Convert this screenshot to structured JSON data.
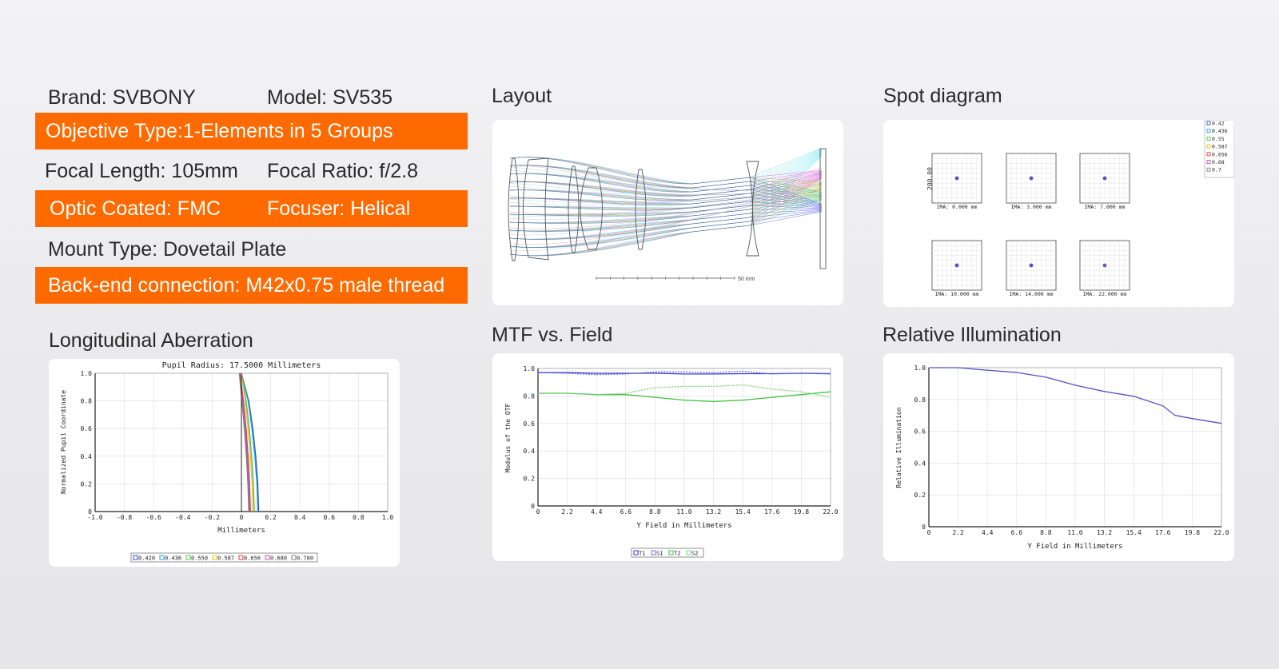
{
  "specs": {
    "brand": "Brand: SVBONY",
    "model": "Model: SV535",
    "objective_type": "Objective Type:1-Elements in 5 Groups",
    "focal_length": "Focal Length: 105mm",
    "focal_ratio": "Focal Ratio: f/2.8",
    "optic_coated": "Optic Coated: FMC",
    "focuser": "Focuser: Helical",
    "mount_type": "Mount Type: Dovetail Plate",
    "back_end": "Back-end connection: M42x0.75 male thread"
  },
  "colors": {
    "accent": "#ff6a00"
  },
  "sections": {
    "layout": "Layout",
    "spot": "Spot diagram",
    "longitudinal": "Longitudinal Aberration",
    "mtf": "MTF vs. Field",
    "illumination": "Relative Illumination"
  },
  "layout_scale": "50 mm",
  "spot_diagram": {
    "ylabel": "200.00",
    "legend": [
      "0.42",
      "0.436",
      "0.55",
      "0.587",
      "0.656",
      "0.68",
      "0.7"
    ],
    "fields": [
      "IMA: 0.000 mm",
      "IMA: 3.000 mm",
      "IMA: 7.000 mm",
      "IMA: 10.000 mm",
      "IMA: 14.000 mm",
      "IMA: 22.000 mm"
    ]
  },
  "chart_data": [
    {
      "id": "longitudinal",
      "type": "line",
      "title": "Pupil Radius: 17.5000 Millimeters",
      "xlabel": "Millimeters",
      "ylabel": "Normalized Pupil Coordinate",
      "xlim": [
        -1.0,
        1.0
      ],
      "ylim": [
        0,
        1.0
      ],
      "xticks": [
        "-1.0",
        "-0.8",
        "-0.6",
        "-0.4",
        "-0.2",
        "0",
        "0.2",
        "0.4",
        "0.6",
        "0.8",
        "1.0"
      ],
      "yticks": [
        "0",
        "0.2",
        "0.4",
        "0.6",
        "0.8",
        "1.0"
      ],
      "legend": [
        "0.420",
        "0.436",
        "0.550",
        "0.587",
        "0.656",
        "0.680",
        "0.700"
      ],
      "series": [
        {
          "name": "0.420",
          "color": "#3050d0",
          "x": [
            0.118,
            0.112,
            0.098,
            0.078,
            0.05,
            0.0
          ],
          "y": [
            0,
            0.2,
            0.4,
            0.6,
            0.8,
            1.0
          ]
        },
        {
          "name": "0.436",
          "color": "#20a0e0",
          "x": [
            0.112,
            0.106,
            0.092,
            0.072,
            0.046,
            0.0
          ],
          "y": [
            0,
            0.2,
            0.4,
            0.6,
            0.8,
            1.0
          ]
        },
        {
          "name": "0.550",
          "color": "#50c050",
          "x": [
            0.088,
            0.082,
            0.07,
            0.054,
            0.032,
            0.0
          ],
          "y": [
            0,
            0.2,
            0.4,
            0.6,
            0.8,
            1.0
          ]
        },
        {
          "name": "0.587",
          "color": "#e0c020",
          "x": [
            0.08,
            0.074,
            0.062,
            0.046,
            0.026,
            0.0
          ],
          "y": [
            0,
            0.2,
            0.4,
            0.6,
            0.8,
            1.0
          ]
        },
        {
          "name": "0.656",
          "color": "#e04040",
          "x": [
            0.062,
            0.056,
            0.046,
            0.032,
            0.014,
            -0.01
          ],
          "y": [
            0,
            0.2,
            0.4,
            0.6,
            0.8,
            1.0
          ]
        },
        {
          "name": "0.680",
          "color": "#c050c0",
          "x": [
            0.056,
            0.05,
            0.04,
            0.026,
            0.01,
            -0.012
          ],
          "y": [
            0,
            0.2,
            0.4,
            0.6,
            0.8,
            1.0
          ]
        },
        {
          "name": "0.700",
          "color": "#808080",
          "x": [
            0.05,
            0.044,
            0.034,
            0.02,
            0.004,
            -0.015
          ],
          "y": [
            0,
            0.2,
            0.4,
            0.6,
            0.8,
            1.0
          ]
        }
      ]
    },
    {
      "id": "mtf",
      "type": "line",
      "xlabel": "Y Field in Millimeters",
      "ylabel": "Modulus of the OTF",
      "xlim": [
        0,
        22.0
      ],
      "ylim": [
        0,
        1.0
      ],
      "xticks": [
        "0",
        "2.2",
        "4.4",
        "6.6",
        "8.8",
        "11.0",
        "13.2",
        "15.4",
        "17.6",
        "19.8",
        "22.0"
      ],
      "yticks": [
        "0",
        "0.2",
        "0.4",
        "0.6",
        "0.8",
        "1.0"
      ],
      "legend": [
        "T1",
        "S1",
        "T2",
        "S2"
      ],
      "series": [
        {
          "name": "T1",
          "color": "#3a3ad0",
          "dashed": false,
          "x": [
            0,
            2.2,
            4.4,
            6.6,
            8.8,
            11.0,
            13.2,
            15.4,
            17.6,
            19.8,
            22.0
          ],
          "y": [
            0.97,
            0.97,
            0.965,
            0.965,
            0.965,
            0.96,
            0.96,
            0.962,
            0.962,
            0.965,
            0.962
          ]
        },
        {
          "name": "S1",
          "color": "#6a6ae0",
          "dashed": true,
          "x": [
            0,
            2.2,
            4.4,
            6.6,
            8.8,
            11.0,
            13.2,
            15.4,
            17.6,
            19.8,
            22.0
          ],
          "y": [
            0.97,
            0.965,
            0.955,
            0.96,
            0.975,
            0.975,
            0.97,
            0.98,
            0.96,
            0.965,
            0.96
          ]
        },
        {
          "name": "T2",
          "color": "#40c040",
          "dashed": false,
          "x": [
            0,
            2.2,
            4.4,
            6.6,
            8.8,
            11.0,
            13.2,
            15.4,
            17.6,
            19.8,
            22.0
          ],
          "y": [
            0.82,
            0.82,
            0.81,
            0.81,
            0.79,
            0.77,
            0.76,
            0.77,
            0.79,
            0.81,
            0.83
          ]
        },
        {
          "name": "S2",
          "color": "#80d080",
          "dashed": true,
          "x": [
            0,
            2.2,
            4.4,
            6.6,
            8.8,
            11.0,
            13.2,
            15.4,
            17.6,
            19.8,
            22.0
          ],
          "y": [
            0.82,
            0.82,
            0.81,
            0.82,
            0.86,
            0.87,
            0.87,
            0.88,
            0.85,
            0.83,
            0.79
          ]
        }
      ]
    },
    {
      "id": "illumination",
      "type": "line",
      "xlabel": "Y Field in Millimeters",
      "ylabel": "Relative Illumination",
      "xlim": [
        0,
        22.0
      ],
      "ylim": [
        0,
        1.0
      ],
      "xticks": [
        "0",
        "2.2",
        "4.4",
        "6.6",
        "8.8",
        "11.0",
        "13.2",
        "15.4",
        "17.6",
        "19.8",
        "22.0"
      ],
      "yticks": [
        "0",
        "0.2",
        "0.4",
        "0.6",
        "0.8",
        "1.0"
      ],
      "series": [
        {
          "color": "#5050c8",
          "x": [
            0,
            2.2,
            3.5,
            6.6,
            8.8,
            11.0,
            13.2,
            15.4,
            17.6,
            18.5,
            19.8,
            22.0
          ],
          "y": [
            1.0,
            1.0,
            0.99,
            0.97,
            0.94,
            0.89,
            0.85,
            0.82,
            0.76,
            0.7,
            0.68,
            0.65
          ]
        }
      ]
    }
  ]
}
